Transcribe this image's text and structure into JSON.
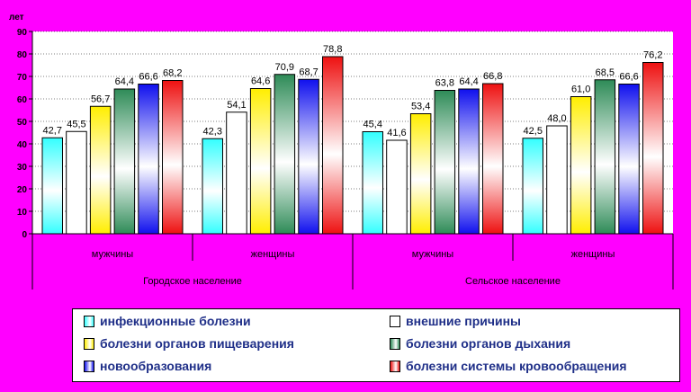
{
  "chart_data": {
    "type": "bar",
    "ylabel": "лет",
    "ylim": [
      0,
      90
    ],
    "yticks": [
      0,
      10,
      20,
      30,
      40,
      50,
      60,
      70,
      80,
      90
    ],
    "grid": true,
    "legend_position": "bottom",
    "groups": [
      {
        "label": "Городское население",
        "categories": [
          "мужчины",
          "женщины"
        ]
      },
      {
        "label": "Сельское население",
        "categories": [
          "мужчины",
          "женщины"
        ]
      }
    ],
    "categories": [
      "мужчины",
      "женщины",
      "мужчины",
      "женщины"
    ],
    "series": [
      {
        "name": "инфекционные болезни",
        "color": "#33FFFF",
        "values": [
          42.7,
          42.3,
          45.4,
          42.5
        ]
      },
      {
        "name": "внешние причины",
        "color": "#FFFFFF",
        "values": [
          45.5,
          54.1,
          41.6,
          48.0
        ]
      },
      {
        "name": "болезни органов пищеварения",
        "color": "#FFEE00",
        "values": [
          56.7,
          64.6,
          53.4,
          61.0
        ]
      },
      {
        "name": "болезни органов дыхания",
        "color": "#2E8B57",
        "values": [
          64.4,
          70.9,
          63.8,
          68.5
        ]
      },
      {
        "name": "новообразования",
        "color": "#1010EE",
        "values": [
          66.6,
          68.7,
          64.4,
          66.6
        ]
      },
      {
        "name": "болезни системы кровообращения",
        "color": "#EE1111",
        "values": [
          68.2,
          78.8,
          66.8,
          76.2
        ]
      }
    ]
  }
}
